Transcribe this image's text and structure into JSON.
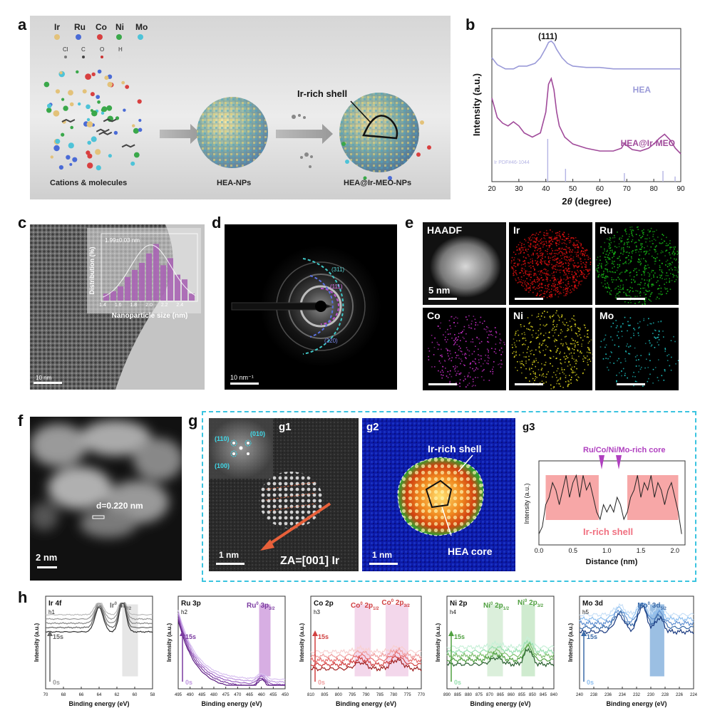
{
  "panel_labels": {
    "a": "a",
    "b": "b",
    "c": "c",
    "d": "d",
    "e": "e",
    "f": "f",
    "g": "g",
    "h": "h"
  },
  "panel_a": {
    "elements": [
      "Ir",
      "Ru",
      "Co",
      "Ni",
      "Mo"
    ],
    "element_colors": [
      "#e3c27a",
      "#4a6bd6",
      "#d84040",
      "#3aa84a",
      "#4ec3d8"
    ],
    "ligands": [
      "Cl",
      "C",
      "O",
      "H"
    ],
    "label_cations": "Cations & molecules",
    "label_hea": "HEA-NPs",
    "label_core_shell": "HEA@Ir-MEO-NPs",
    "label_shell": "Ir-rich shell"
  },
  "panel_b": {
    "peak_label": "(111)",
    "ref_label": "Ir PDF#46-1044",
    "series_names": [
      "HEA",
      "HEA@Ir-MEO"
    ],
    "series_colors": [
      "#9a9ad8",
      "#a04a9a"
    ],
    "xlabel_prefix": "2",
    "xlabel_theta": "θ",
    "xlabel_suffix": " (degree)",
    "ylabel": "Intensity (a.u.)",
    "xticks": [
      "20",
      "30",
      "40",
      "50",
      "60",
      "70",
      "80",
      "90"
    ]
  },
  "chart_data": [
    {
      "type": "line",
      "xlim": [
        20,
        90
      ],
      "xlabel": "2θ (degree)",
      "ylabel": "Intensity (a.u.)",
      "series": [
        {
          "name": "HEA",
          "x": [
            20,
            22,
            25,
            28,
            30,
            33,
            36,
            38,
            40,
            41,
            42,
            43,
            44,
            46,
            48,
            50,
            55,
            60,
            65,
            70,
            75,
            80,
            85,
            90
          ],
          "y": [
            8.9,
            8.4,
            8.1,
            8.1,
            8.3,
            8.3,
            8.5,
            8.9,
            9.6,
            10.0,
            10.1,
            9.9,
            9.5,
            8.9,
            8.5,
            8.3,
            8.2,
            8.2,
            8.1,
            8.1,
            8.1,
            8.1,
            8.1,
            8.1
          ]
        },
        {
          "name": "HEA@Ir-MEO",
          "x": [
            20,
            22,
            24,
            26,
            28,
            30,
            32,
            35,
            38,
            40,
            41,
            42,
            43,
            44,
            45,
            47,
            50,
            55,
            60,
            65,
            68,
            69,
            70,
            72,
            75,
            78,
            80,
            82,
            84,
            86,
            88,
            90
          ],
          "y": [
            6.0,
            4.6,
            4.2,
            4.0,
            4.3,
            4.0,
            3.5,
            3.2,
            3.5,
            5.0,
            7.0,
            7.4,
            6.6,
            5.0,
            4.0,
            3.2,
            2.7,
            2.4,
            2.2,
            2.2,
            2.4,
            2.7,
            2.6,
            2.3,
            2.2,
            2.4,
            2.7,
            3.1,
            3.4,
            3.0,
            2.4,
            2.0
          ]
        }
      ],
      "reference_lines_2theta": [
        40.7,
        47.3,
        69.1,
        83.4,
        87.9
      ]
    },
    {
      "type": "bar",
      "title": "1.99±0.03 nm",
      "xlabel": "Nanoparticle size (nm)",
      "ylabel": "Distribution (%)",
      "categories": [
        "1.4",
        "1.5",
        "1.6",
        "1.7",
        "1.8",
        "1.9",
        "2.0",
        "2.1",
        "2.2",
        "2.3",
        "2.4",
        "2.5",
        "2.6"
      ],
      "values": [
        3,
        4,
        6,
        10,
        13,
        16,
        20,
        24,
        15,
        18,
        11,
        9,
        3
      ],
      "xticks": [
        "1.4",
        "1.6",
        "1.8",
        "2.0",
        "2.2",
        "2.4"
      ]
    },
    {
      "type": "line",
      "xlim": [
        0,
        2.1
      ],
      "xlabel": "Distance (nm)",
      "ylabel": "Intensity (a.u.)",
      "xticks": [
        "0.0",
        "0.5",
        "1.0",
        "1.5",
        "2.0"
      ],
      "series": [
        {
          "x": [
            0,
            0.05,
            0.1,
            0.15,
            0.2,
            0.25,
            0.3,
            0.35,
            0.4,
            0.45,
            0.5,
            0.55,
            0.6,
            0.65,
            0.7,
            0.75,
            0.8,
            0.85,
            0.9,
            0.95,
            1.0,
            1.05,
            1.1,
            1.15,
            1.2,
            1.25,
            1.3,
            1.35,
            1.4,
            1.45,
            1.5,
            1.55,
            1.6,
            1.65,
            1.7,
            1.75,
            1.8,
            1.85,
            1.9,
            1.95,
            2.0,
            2.05,
            2.1
          ],
          "y": [
            1,
            2,
            5,
            6,
            8,
            7,
            5,
            7,
            9,
            6,
            8,
            9,
            6,
            9,
            7,
            8,
            6,
            4,
            3,
            5,
            4,
            5,
            4,
            6,
            5,
            3,
            4,
            6,
            7,
            9,
            6,
            8,
            7,
            9,
            6,
            8,
            7,
            5,
            7,
            8,
            6,
            4,
            1
          ]
        }
      ],
      "highlight_ranges": [
        [
          0.1,
          0.88
        ],
        [
          1.3,
          2.05
        ]
      ]
    },
    {
      "type": "line",
      "title": "Ir 4f",
      "xlabel": "Binding energy (eV)",
      "ylabel": "Intensity (a.u.)",
      "xlim": [
        70,
        58
      ],
      "xticks": [
        "70",
        "68",
        "66",
        "64",
        "62",
        "60",
        "58"
      ],
      "peaks_eV": [
        64.6,
        61.6
      ]
    },
    {
      "type": "line",
      "title": "Ru 3p",
      "xlabel": "Binding energy (eV)",
      "ylabel": "Intensity (a.u.)",
      "xlim": [
        495,
        450
      ],
      "xticks": [
        "495",
        "490",
        "485",
        "480",
        "475",
        "470",
        "465",
        "460",
        "455",
        "450"
      ],
      "peaks_eV": [
        462
      ]
    },
    {
      "type": "line",
      "title": "Co 2p",
      "xlabel": "Binding energy (eV)",
      "ylabel": "Intensity (a.u.)",
      "xlim": [
        810,
        770
      ],
      "xticks": [
        "810",
        "805",
        "800",
        "795",
        "790",
        "785",
        "780",
        "775",
        "770"
      ],
      "peaks_eV": [
        795,
        778
      ]
    },
    {
      "type": "line",
      "title": "Ni 2p",
      "xlabel": "Binding energy (eV)",
      "ylabel": "Intensity (a.u.)",
      "xlim": [
        890,
        840
      ],
      "xticks": [
        "890",
        "885",
        "880",
        "875",
        "870",
        "865",
        "860",
        "855",
        "850",
        "845",
        "840"
      ],
      "peaks_eV": [
        870,
        853
      ]
    },
    {
      "type": "line",
      "title": "Mo 3d",
      "xlabel": "Binding energy (eV)",
      "ylabel": "Intensity (a.u.)",
      "xlim": [
        240,
        224
      ],
      "xticks": [
        "240",
        "238",
        "236",
        "234",
        "232",
        "230",
        "228",
        "226",
        "224"
      ],
      "peaks_eV": [
        235.3,
        231.5,
        228.5
      ]
    }
  ],
  "panel_c": {
    "scale_label": "10 nm"
  },
  "panel_d": {
    "rings": [
      "(311)",
      "(111)",
      "(220)"
    ],
    "scale_label": "10 nm⁻¹"
  },
  "panel_e": {
    "maps": [
      "HAADF",
      "Ir",
      "Ru",
      "Co",
      "Ni",
      "Mo"
    ],
    "scale_label": "5 nm",
    "map_colors": [
      "#cccccc",
      "#e01010",
      "#18c018",
      "#d030d0",
      "#e8e020",
      "#20d0d0"
    ]
  },
  "panel_f": {
    "d_spacing": "d=0.220 nm",
    "scale_label": "2 nm"
  },
  "panel_g": {
    "g1": "g1",
    "g2": "g2",
    "g3": "g3",
    "fft_spots": [
      "(110)",
      "(010)",
      "(100)"
    ],
    "zone_axis": "ZA=[001] Ir",
    "scale_label": "1 nm",
    "shell_label": "Ir-rich shell",
    "core_label": "HEA core",
    "core_annot": "Ru/Co/Ni/Mo-rich core",
    "shell_annot": "Ir-rich shell"
  },
  "panel_h": {
    "h1": {
      "id": "h1",
      "title": "Ir 4f",
      "peak_base": "Ir",
      "peak_sup": "0",
      "peak_main": " 4f",
      "peak_sub": "7/2",
      "time_top": "15s",
      "time_bottom": "0s"
    },
    "h2": {
      "id": "h2",
      "title": "Ru 3p",
      "peak_base": "Ru",
      "peak_sup": "0",
      "peak_main": " 3p",
      "peak_sub": "3/2",
      "time_top": "15s",
      "time_bottom": "0s"
    },
    "h3": {
      "id": "h3",
      "title": "Co 2p",
      "peak1_base": "Co",
      "peak1_sup": "0",
      "peak1_main": " 2p",
      "peak1_sub": "1/2",
      "peak2_base": "Co",
      "peak2_sup": "0",
      "peak2_main": " 2p",
      "peak2_sub": "3/2",
      "time_top": "15s",
      "time_bottom": "0s"
    },
    "h4": {
      "id": "h4",
      "title": "Ni 2p",
      "peak1_base": "Ni",
      "peak1_sup": "0",
      "peak1_main": " 2p",
      "peak1_sub": "1/2",
      "peak2_base": "Ni",
      "peak2_sup": "0",
      "peak2_main": " 2p",
      "peak2_sub": "3/2",
      "time_top": "15s",
      "time_bottom": "0s"
    },
    "h5": {
      "id": "h5",
      "title": "Mo 3d",
      "peak_base": "Mo",
      "peak_sup": "0",
      "peak_main": " 3d",
      "peak_sub": "5/2",
      "time_top": "15s",
      "time_bottom": "0s"
    }
  }
}
